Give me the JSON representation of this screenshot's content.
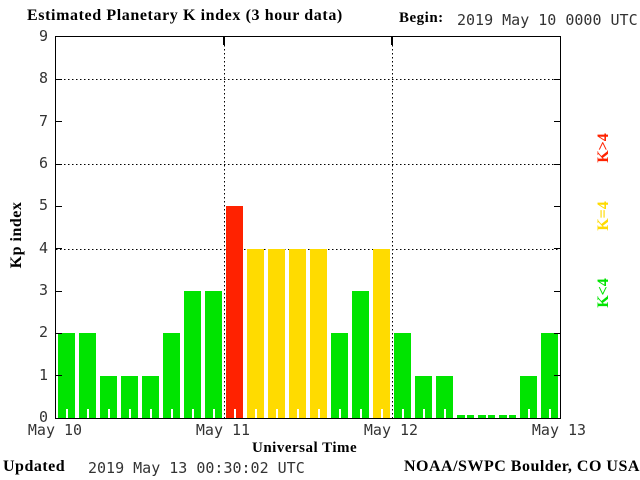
{
  "header": {
    "title": "Estimated Planetary K index (3 hour data)",
    "begin_label": "Begin:",
    "begin_value": "2019 May 10 0000 UTC"
  },
  "chart_data": {
    "type": "bar",
    "title": "Estimated Planetary K index (3 hour data)",
    "begin": "2019 May 10 0000 UTC",
    "xlabel": "Universal Time",
    "ylabel": "Kp index",
    "ylim": [
      0,
      9
    ],
    "y_ticks": [
      0,
      1,
      2,
      3,
      4,
      5,
      6,
      7,
      8,
      9
    ],
    "y_gridlines": [
      4,
      6,
      8
    ],
    "x_tick_labels": [
      "May 10",
      "May 11",
      "May 12",
      "May 13"
    ],
    "intervals_per_day": 8,
    "interval_hours": 3,
    "grid": "dotted",
    "days": [
      {
        "date": "May 10",
        "values": [
          2,
          2,
          1,
          1,
          1,
          2,
          3,
          3
        ]
      },
      {
        "date": "May 11",
        "values": [
          5,
          4,
          4,
          4,
          4,
          2,
          3,
          4
        ]
      },
      {
        "date": "May 12",
        "values": [
          2,
          1,
          1,
          0,
          0,
          0,
          1,
          2
        ]
      }
    ],
    "colors": {
      "below4": "#00e400",
      "equal4": "#ffdb00",
      "above4": "#ff2200"
    }
  },
  "legend": {
    "entries": [
      {
        "id": "k-gt-4",
        "label": "K>4",
        "color": "#ff2200"
      },
      {
        "id": "k-eq-4",
        "label": "K=4",
        "color": "#ffdb00"
      },
      {
        "id": "k-lt-4",
        "label": "K<4",
        "color": "#00e400"
      }
    ],
    "position": "right"
  },
  "footer": {
    "xlabel": "Universal Time",
    "updated_label": "Updated",
    "updated_value": "2019 May 13 00:30:02 UTC",
    "credit": "NOAA/SWPC Boulder, CO USA"
  }
}
